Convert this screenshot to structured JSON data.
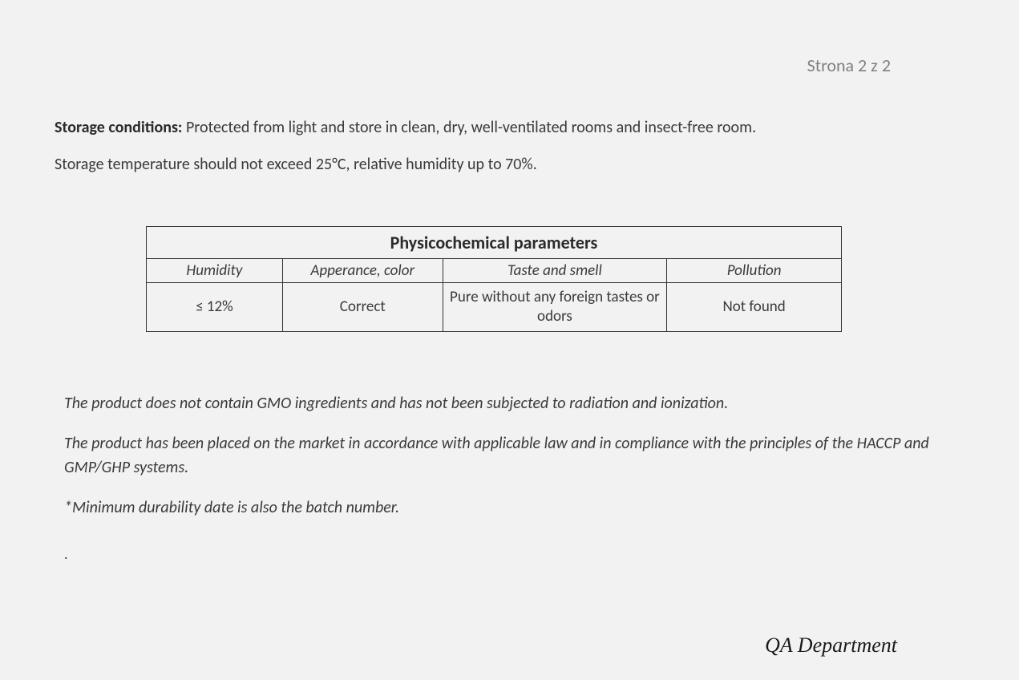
{
  "page_number": "Strona 2 z 2",
  "storage": {
    "label": "Storage conditions:",
    "text_line1": " Protected from light and store in clean, dry, well-ventilated rooms and insect-free room.",
    "text_line2": "Storage temperature should not exceed 25°C, relative humidity up to 70%."
  },
  "table": {
    "title": "Physicochemical parameters",
    "columns": [
      "Humidity",
      "Apperance, color",
      "Taste and smell",
      "Pollution"
    ],
    "row": [
      "≤ 12%",
      "Correct",
      "Pure without any foreign tastes or odors",
      "Not found"
    ],
    "border_color": "#333333",
    "title_fontsize": 22,
    "header_fontsize": 19,
    "cell_fontsize": 19
  },
  "notes": {
    "gmo": "The product does not contain GMO ingredients and has not been subjected to radiation and ionization.",
    "compliance": "The product has been placed on the market in accordance with applicable law and in compliance with the principles of the HACCP and GMP/GHP systems.",
    "batch": "*Minimum durability date is also the batch number."
  },
  "signature": "QA Department",
  "colors": {
    "background": "#f2f2f2",
    "text": "#3a3a3a",
    "page_number": "#808080",
    "border": "#333333",
    "signature": "#1a1a1a"
  },
  "typography": {
    "body_font": "Calibri",
    "body_fontsize": 20,
    "signature_font": "cursive",
    "signature_fontsize": 26
  }
}
